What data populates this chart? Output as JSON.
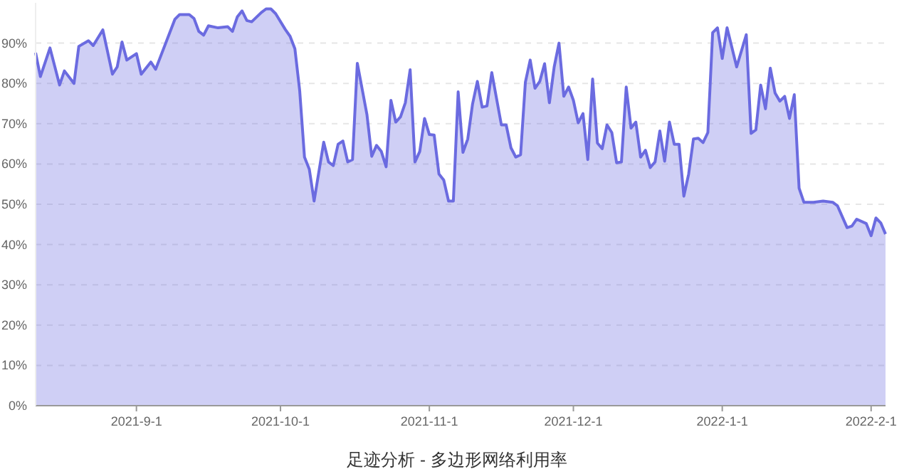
{
  "chart_data": {
    "type": "area",
    "title": "足迹分析 - 多边形网络利用率",
    "x": [
      "2021-08-11",
      "2021-08-12",
      "2021-08-14",
      "2021-08-16",
      "2021-08-17",
      "2021-08-19",
      "2021-08-20",
      "2021-08-22",
      "2021-08-23",
      "2021-08-25",
      "2021-08-27",
      "2021-08-28",
      "2021-08-29",
      "2021-08-30",
      "2021-09-01",
      "2021-09-02",
      "2021-09-04",
      "2021-09-05",
      "2021-09-09",
      "2021-09-10",
      "2021-09-12",
      "2021-09-13",
      "2021-09-14",
      "2021-09-15",
      "2021-09-16",
      "2021-09-18",
      "2021-09-20",
      "2021-09-21",
      "2021-09-22",
      "2021-09-23",
      "2021-09-24",
      "2021-09-25",
      "2021-09-27",
      "2021-09-28",
      "2021-09-29",
      "2021-09-30",
      "2021-10-02",
      "2021-10-03",
      "2021-10-04",
      "2021-10-05",
      "2021-10-06",
      "2021-10-07",
      "2021-10-08",
      "2021-10-10",
      "2021-10-11",
      "2021-10-12",
      "2021-10-13",
      "2021-10-14",
      "2021-10-15",
      "2021-10-16",
      "2021-10-17",
      "2021-10-19",
      "2021-10-20",
      "2021-10-21",
      "2021-10-22",
      "2021-10-23",
      "2021-10-24",
      "2021-10-25",
      "2021-10-26",
      "2021-10-27",
      "2021-10-28",
      "2021-10-29",
      "2021-10-30",
      "2021-10-31",
      "2021-11-01",
      "2021-11-02",
      "2021-11-03",
      "2021-11-04",
      "2021-11-05",
      "2021-11-06",
      "2021-11-07",
      "2021-11-08",
      "2021-11-09",
      "2021-11-10",
      "2021-11-11",
      "2021-11-12",
      "2021-11-13",
      "2021-11-14",
      "2021-11-16",
      "2021-11-17",
      "2021-11-18",
      "2021-11-19",
      "2021-11-20",
      "2021-11-21",
      "2021-11-22",
      "2021-11-23",
      "2021-11-24",
      "2021-11-25",
      "2021-11-26",
      "2021-11-27",
      "2021-11-28",
      "2021-11-29",
      "2021-11-30",
      "2021-12-01",
      "2021-12-02",
      "2021-12-03",
      "2021-12-04",
      "2021-12-05",
      "2021-12-06",
      "2021-12-07",
      "2021-12-08",
      "2021-12-09",
      "2021-12-10",
      "2021-12-11",
      "2021-12-12",
      "2021-12-13",
      "2021-12-14",
      "2021-12-15",
      "2021-12-16",
      "2021-12-17",
      "2021-12-18",
      "2021-12-19",
      "2021-12-20",
      "2021-12-21",
      "2021-12-22",
      "2021-12-23",
      "2021-12-24",
      "2021-12-25",
      "2021-12-26",
      "2021-12-27",
      "2021-12-28",
      "2021-12-29",
      "2021-12-30",
      "2021-12-31",
      "2022-01-01",
      "2022-01-02",
      "2022-01-04",
      "2022-01-06",
      "2022-01-07",
      "2022-01-08",
      "2022-01-09",
      "2022-01-10",
      "2022-01-11",
      "2022-01-12",
      "2022-01-13",
      "2022-01-14",
      "2022-01-15",
      "2022-01-16",
      "2022-01-17",
      "2022-01-18",
      "2022-01-20",
      "2022-01-22",
      "2022-01-24",
      "2022-01-25",
      "2022-01-27",
      "2022-01-28",
      "2022-01-29",
      "2022-01-31",
      "2022-02-01",
      "2022-02-02",
      "2022-02-03",
      "2022-02-04"
    ],
    "series": [
      {
        "color": "#6b6be0",
        "values": [
          87.6,
          81.7,
          88.8,
          79.6,
          83.1,
          80,
          89.2,
          90.6,
          89.4,
          93.3,
          82.3,
          84.1,
          90.3,
          85.8,
          87.4,
          82.3,
          85.3,
          83.5,
          95.9,
          97.1,
          97.1,
          96.1,
          92.9,
          92,
          94.3,
          93.8,
          94.1,
          92.9,
          96.5,
          98,
          95.6,
          95.3,
          97.6,
          98.5,
          98.5,
          97.3,
          93.4,
          91.7,
          88.6,
          78.2,
          61.7,
          58.7,
          50.8,
          65.4,
          60.5,
          59.6,
          64.9,
          65.7,
          60.5,
          61.1,
          85,
          72.3,
          61.9,
          64.6,
          63.1,
          59.3,
          75.8,
          70.4,
          71.7,
          75.2,
          83.4,
          60.5,
          63.1,
          71.3,
          67.3,
          67.2,
          57.5,
          56,
          50.8,
          50.8,
          77.9,
          62.9,
          66.2,
          74.9,
          80.5,
          74.1,
          74.4,
          82.7,
          69.7,
          69.7,
          64,
          61.7,
          62.3,
          80.3,
          85.8,
          78.8,
          80.5,
          84.9,
          75.2,
          84.1,
          90,
          76.8,
          79.1,
          75.8,
          70.2,
          72.5,
          61.1,
          81.1,
          65.2,
          63.8,
          69.7,
          67.8,
          60.3,
          60.5,
          79.1,
          68.9,
          70.4,
          61.7,
          63.4,
          59.1,
          60.5,
          68.2,
          60.7,
          70.4,
          64.9,
          64.9,
          52,
          57.5,
          66.2,
          66.4,
          65.3,
          67.8,
          92.6,
          93.8,
          86.2,
          93.8,
          84.1,
          92.1,
          67.6,
          68.5,
          79.6,
          73.7,
          83.8,
          77.6,
          75.6,
          76.8,
          71.3,
          77.2,
          54,
          50.5,
          50.5,
          50.8,
          50.5,
          49.6,
          44.2,
          44.6,
          46.3,
          45.2,
          42.2,
          46.6,
          45.4,
          42.6
        ]
      }
    ],
    "xlim": [
      "2021-08-11",
      "2022-02-04"
    ],
    "xticks": [
      {
        "value": "2021-09-01",
        "label": "2021-9-1"
      },
      {
        "value": "2021-10-01",
        "label": "2021-10-1"
      },
      {
        "value": "2021-11-01",
        "label": "2021-11-1"
      },
      {
        "value": "2021-12-01",
        "label": "2021-12-1"
      },
      {
        "value": "2022-01-01",
        "label": "2022-1-1"
      },
      {
        "value": "2022-02-01",
        "label": "2022-2-1"
      }
    ],
    "ylim": [
      0,
      100
    ],
    "yticks": [
      {
        "value": 0,
        "label": "0%"
      },
      {
        "value": 10,
        "label": "10%"
      },
      {
        "value": 20,
        "label": "20%"
      },
      {
        "value": 30,
        "label": "30%"
      },
      {
        "value": 40,
        "label": "40%"
      },
      {
        "value": 50,
        "label": "50%"
      },
      {
        "value": 60,
        "label": "60%"
      },
      {
        "value": 70,
        "label": "70%"
      },
      {
        "value": 80,
        "label": "80%"
      },
      {
        "value": 90,
        "label": "90%"
      }
    ],
    "grid": "y"
  }
}
